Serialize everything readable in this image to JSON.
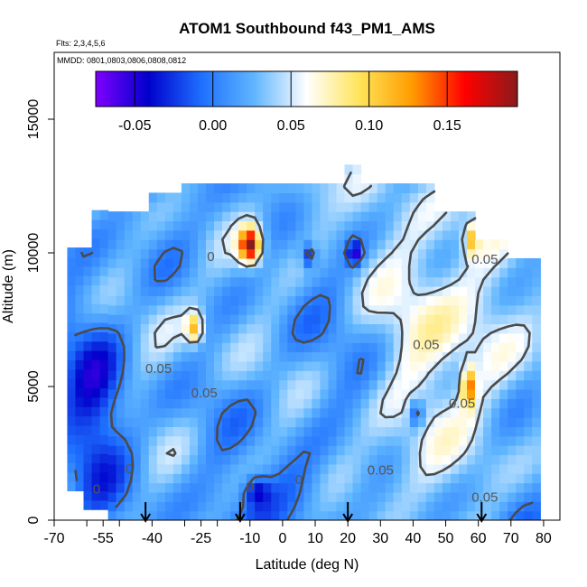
{
  "chart_data": {
    "type": "heatmap",
    "title": "ATOM1 Southbound f43_PM1_AMS",
    "subtitle_flights": "Flts: 2,3,4,5,6",
    "subtitle_dates": "MMDD: 0801,0803,0806,0808,0812",
    "xlabel": "Latitude (deg N)",
    "ylabel": "Altitude (m)",
    "xlim": [
      -70,
      85
    ],
    "ylim": [
      0,
      17500
    ],
    "x_tick_labels": [
      "-70",
      "-55",
      "-40",
      "-25",
      "-10",
      "0",
      "10",
      "20",
      "30",
      "40",
      "50",
      "60",
      "70",
      "80"
    ],
    "x_tick_values": [
      -70,
      -55,
      -40,
      -25,
      -10,
      0,
      10,
      20,
      30,
      40,
      50,
      60,
      70,
      80
    ],
    "x_minor_ticks": [
      -60,
      -50,
      -30,
      -20
    ],
    "y_tick_labels": [
      "0",
      "5000",
      "10000",
      "15000"
    ],
    "y_tick_values": [
      0,
      5000,
      10000,
      15000
    ],
    "colorbar": {
      "range": [
        -0.075,
        0.195
      ],
      "tick_labels": [
        "-0.05",
        "0.00",
        "0.05",
        "0.10",
        "0.15"
      ],
      "tick_values": [
        -0.05,
        0.0,
        0.05,
        0.1,
        0.15
      ],
      "colors": [
        "#7f00ff",
        "#0000cc",
        "#1e6fff",
        "#5fb5ff",
        "#ffffff",
        "#ffe45a",
        "#ff9c00",
        "#ff0000",
        "#8b1a1a"
      ]
    },
    "contour_labels": [
      {
        "text": "0",
        "x": -22,
        "y": 9700
      },
      {
        "text": "0.05",
        "x": 62,
        "y": 9600
      },
      {
        "text": "0.05",
        "x": 44,
        "y": 6400
      },
      {
        "text": "0.05",
        "x": -38,
        "y": 5500
      },
      {
        "text": "0.05",
        "x": -24,
        "y": 4600
      },
      {
        "text": "0.05",
        "x": 55,
        "y": 4200
      },
      {
        "text": "0",
        "x": -47,
        "y": 1750
      },
      {
        "text": "0",
        "x": -57,
        "y": 1000
      },
      {
        "text": "0.05",
        "x": 30,
        "y": 1700
      },
      {
        "text": "0.05",
        "x": 62,
        "y": 700
      },
      {
        "text": "0",
        "x": -10,
        "y": 1100
      },
      {
        "text": "0",
        "x": 5,
        "y": 1350
      }
    ],
    "arrows_lat": [
      -42,
      -13,
      20,
      61
    ],
    "grid": false
  }
}
